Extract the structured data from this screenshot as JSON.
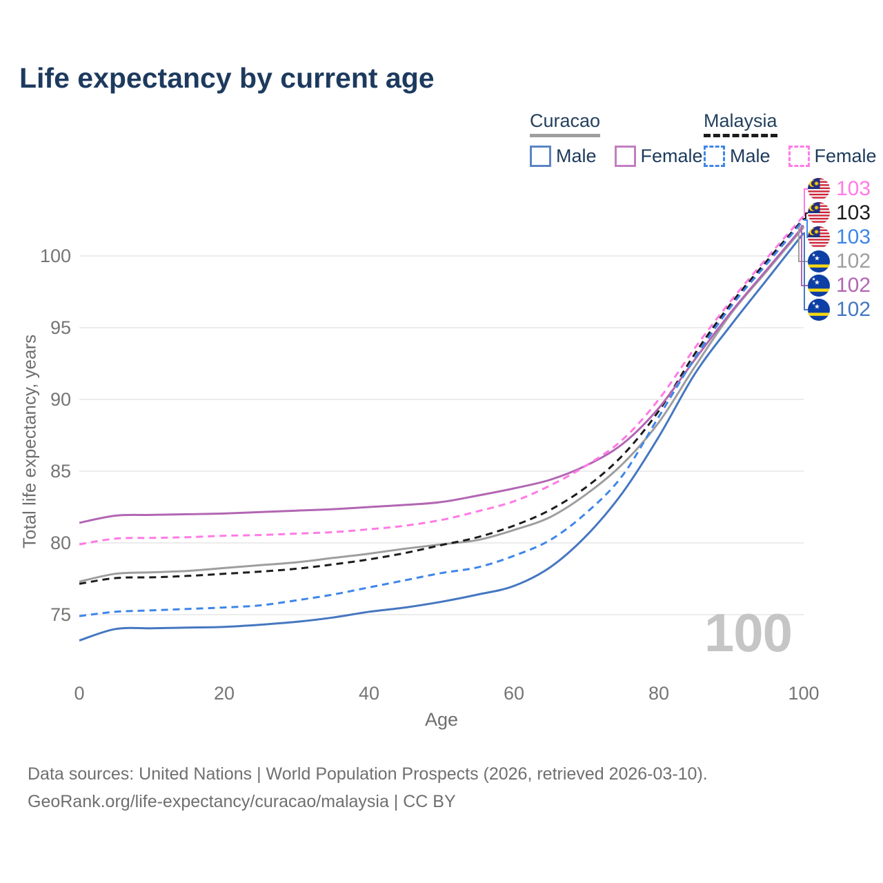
{
  "title": "Life expectancy by current age",
  "legend": {
    "groups": [
      {
        "label": "Curacao",
        "line_style": "solid",
        "entries": [
          {
            "label": "Male",
            "color": "#5b84c4"
          },
          {
            "label": "Female",
            "color": "#c17fc0"
          }
        ]
      },
      {
        "label": "Malaysia",
        "line_style": "dashed",
        "entries": [
          {
            "label": "Male",
            "color": "#3e86e8"
          },
          {
            "label": "Female",
            "color": "#ff7ae5"
          }
        ]
      }
    ]
  },
  "chart_data": {
    "type": "line",
    "title": "Life expectancy by current age",
    "xlabel": "Age",
    "ylabel": "Total life expectancy, years",
    "xlim": [
      0,
      100
    ],
    "ylim": [
      72.5,
      103.5
    ],
    "x_ticks": [
      0,
      20,
      40,
      60,
      80,
      100
    ],
    "y_ticks": [
      75,
      80,
      85,
      90,
      95,
      100
    ],
    "grid": "horizontal",
    "legend_position": "top-right",
    "x": [
      0,
      5,
      10,
      15,
      20,
      25,
      30,
      35,
      40,
      45,
      50,
      55,
      60,
      65,
      70,
      75,
      80,
      85,
      90,
      95,
      100
    ],
    "series": [
      {
        "name": "Curacao",
        "sex": "both",
        "color": "#9e9e9e",
        "dash": "solid",
        "values": [
          77.3,
          77.85,
          77.95,
          78.05,
          78.25,
          78.45,
          78.65,
          78.95,
          79.25,
          79.6,
          79.9,
          80.2,
          80.9,
          81.8,
          83.4,
          85.5,
          88.4,
          92.3,
          96.0,
          99.0,
          102.0
        ]
      },
      {
        "name": "Malaysia",
        "sex": "both",
        "color": "#1c1c1c",
        "dash": "dashed",
        "values": [
          77.15,
          77.55,
          77.6,
          77.7,
          77.85,
          78.0,
          78.2,
          78.5,
          78.85,
          79.3,
          79.85,
          80.4,
          81.2,
          82.3,
          83.9,
          86.1,
          89.2,
          93.2,
          96.7,
          99.7,
          102.6
        ]
      },
      {
        "name": "Curacao Female",
        "sex": "female",
        "color": "#b266b2",
        "dash": "solid",
        "values": [
          81.4,
          81.9,
          81.95,
          82.0,
          82.05,
          82.15,
          82.25,
          82.35,
          82.5,
          82.65,
          82.85,
          83.3,
          83.8,
          84.4,
          85.4,
          86.9,
          89.4,
          92.8,
          96.1,
          99.1,
          102.1
        ]
      },
      {
        "name": "Malaysia Female",
        "sex": "female",
        "color": "#ff7ae5",
        "dash": "dashed",
        "values": [
          79.9,
          80.3,
          80.35,
          80.4,
          80.5,
          80.55,
          80.65,
          80.75,
          80.95,
          81.2,
          81.6,
          82.2,
          82.9,
          84.0,
          85.4,
          87.2,
          90.0,
          93.6,
          96.9,
          99.9,
          102.8
        ]
      },
      {
        "name": "Malaysia Male",
        "sex": "male",
        "color": "#3e86e8",
        "dash": "dashed",
        "values": [
          74.9,
          75.2,
          75.3,
          75.4,
          75.5,
          75.65,
          76.0,
          76.4,
          76.9,
          77.4,
          77.9,
          78.3,
          79.1,
          80.2,
          82.1,
          84.7,
          88.8,
          92.9,
          96.5,
          99.5,
          102.5
        ]
      },
      {
        "name": "Curacao Male",
        "sex": "male",
        "color": "#4577c0",
        "dash": "solid",
        "values": [
          73.2,
          74.0,
          74.05,
          74.1,
          74.15,
          74.3,
          74.5,
          74.8,
          75.2,
          75.5,
          75.9,
          76.4,
          77.0,
          78.3,
          80.5,
          83.5,
          87.4,
          91.8,
          95.2,
          98.4,
          101.6
        ]
      }
    ],
    "end_labels": [
      {
        "value": "103",
        "flag": "malaysia",
        "color": "#ff7ae5",
        "series": "Malaysia Female"
      },
      {
        "value": "103",
        "flag": "malaysia",
        "color": "#1c1c1c",
        "series": "Malaysia"
      },
      {
        "value": "103",
        "flag": "malaysia",
        "color": "#3e86e8",
        "series": "Malaysia Male"
      },
      {
        "value": "102",
        "flag": "curacao",
        "color": "#9e9e9e",
        "series": "Curacao"
      },
      {
        "value": "102",
        "flag": "curacao",
        "color": "#b266b2",
        "series": "Curacao Female"
      },
      {
        "value": "102",
        "flag": "curacao",
        "color": "#4577c0",
        "series": "Curacao Male"
      }
    ],
    "current_age_indicator": "100"
  },
  "watermark": "100",
  "colors": {
    "title_text": "#1d3a5e",
    "axis_text": "#757575",
    "gridline": "#ececec",
    "watermark": "#c5c5c5"
  },
  "footer": {
    "line1": "Data sources: United Nations | World Population Prospects (2026, retrieved 2026-03-10).",
    "line2": "GeoRank.org/life-expectancy/curacao/malaysia | CC BY"
  }
}
